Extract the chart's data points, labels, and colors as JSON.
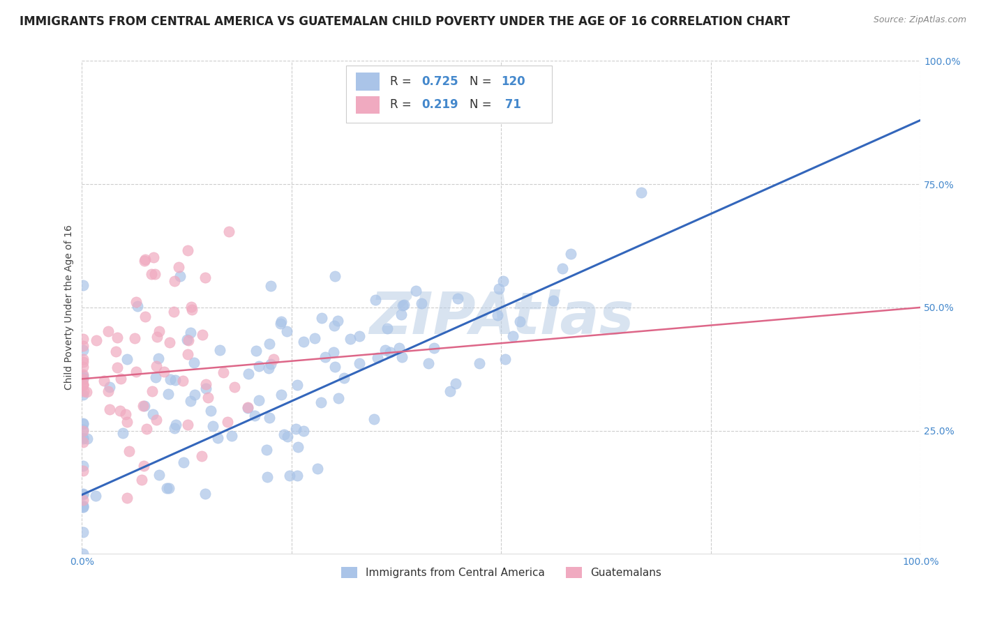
{
  "title": "IMMIGRANTS FROM CENTRAL AMERICA VS GUATEMALAN CHILD POVERTY UNDER THE AGE OF 16 CORRELATION CHART",
  "source": "Source: ZipAtlas.com",
  "ylabel": "Child Poverty Under the Age of 16",
  "watermark": "ZIPAtlas",
  "blue_n": 120,
  "pink_n": 71,
  "blue_color": "#aac4e8",
  "pink_color": "#f0aac0",
  "blue_line_color": "#3366bb",
  "pink_line_color": "#dd6688",
  "blue_R": 0.725,
  "pink_R": 0.219,
  "blue_line_x0": 0.0,
  "blue_line_y0": 0.12,
  "blue_line_x1": 1.0,
  "blue_line_y1": 0.88,
  "pink_line_x0": 0.0,
  "pink_line_y0": 0.355,
  "pink_line_x1": 1.0,
  "pink_line_y1": 0.5,
  "xlim": [
    0.0,
    1.0
  ],
  "ylim": [
    0.0,
    1.0
  ],
  "xticks": [
    0.0,
    0.25,
    0.5,
    0.75,
    1.0
  ],
  "yticks": [
    0.25,
    0.5,
    0.75,
    1.0
  ],
  "xticklabels": [
    "0.0%",
    "",
    "",
    "",
    "100.0%"
  ],
  "yticklabels": [
    "25.0%",
    "50.0%",
    "75.0%",
    "100.0%"
  ],
  "background_color": "#ffffff",
  "grid_color": "#cccccc",
  "title_fontsize": 12,
  "axis_label_fontsize": 10,
  "tick_fontsize": 10,
  "watermark_fontsize": 60,
  "watermark_color": "#b8cce4",
  "watermark_alpha": 0.55,
  "legend_R1": "0.725",
  "legend_N1": "120",
  "legend_R2": "0.219",
  "legend_N2": " 71",
  "tick_color": "#4488cc",
  "legend_label1": "Immigrants from Central America",
  "legend_label2": "Guatemalans"
}
